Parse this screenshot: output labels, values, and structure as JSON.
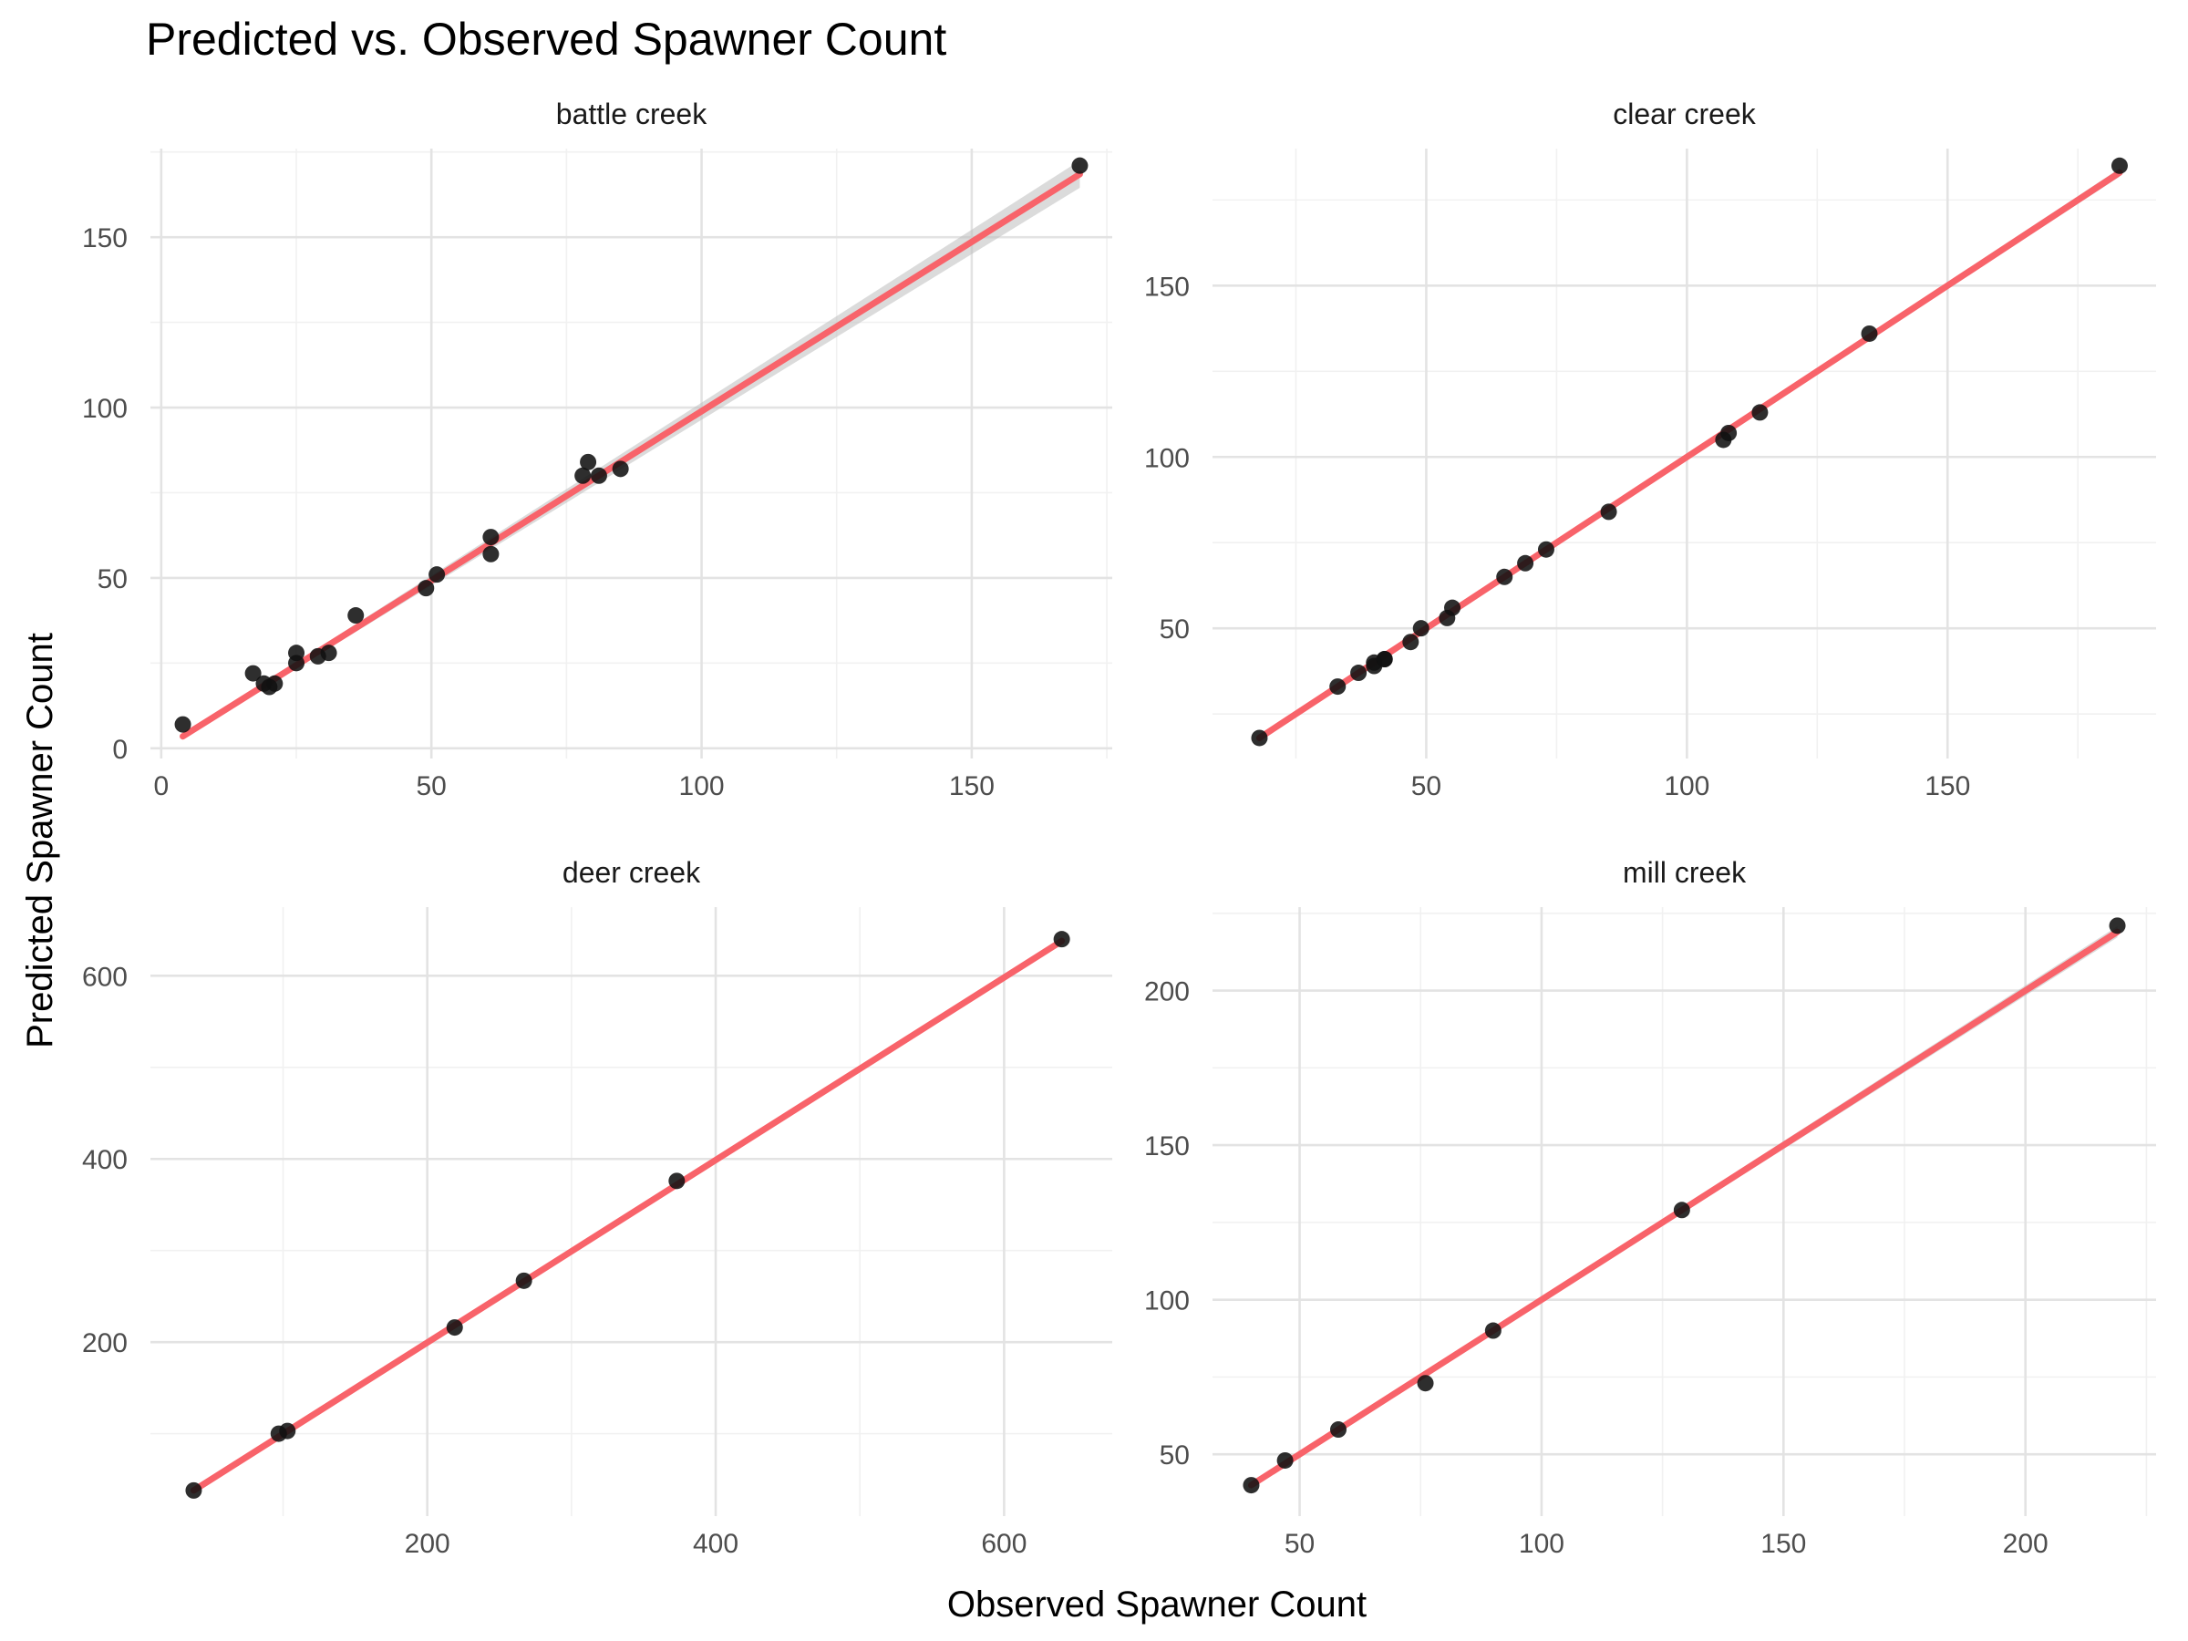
{
  "title": "Predicted vs. Observed Spawner Count",
  "xlabel": "Observed Spawner Count",
  "ylabel": "Predicted Spawner Count",
  "colors": {
    "fit_line": "#f8636a",
    "ribbon": "#bdbdbd",
    "points": "#111111",
    "grid": "#e3e3e3"
  },
  "chart_data": [
    {
      "type": "scatter",
      "panel": "battle creek",
      "xlim": [
        -2,
        176
      ],
      "ylim": [
        -3,
        176
      ],
      "xticks": [
        0,
        50,
        100,
        150
      ],
      "yticks": [
        0,
        50,
        100,
        150
      ],
      "x": [
        4,
        17,
        19,
        20,
        21,
        25,
        25,
        29,
        31,
        36,
        49,
        51,
        61,
        61,
        78,
        79,
        81,
        85,
        170
      ],
      "y": [
        7,
        22,
        19,
        18,
        19,
        28,
        25,
        27,
        28,
        39,
        47,
        51,
        62,
        57,
        80,
        84,
        80,
        82,
        171
      ],
      "fit": {
        "x": [
          4,
          170
        ],
        "y": [
          3.5,
          168.5
        ],
        "band": [
          0.5,
          4
        ]
      }
    },
    {
      "type": "scatter",
      "panel": "clear creek",
      "xlim": [
        9,
        190
      ],
      "ylim": [
        12,
        190
      ],
      "xticks": [
        50,
        100,
        150
      ],
      "yticks": [
        50,
        100,
        150
      ],
      "x": [
        18,
        33,
        37,
        40,
        40,
        42,
        42,
        47,
        49,
        54,
        55,
        65,
        69,
        73,
        85,
        107,
        108,
        114,
        135,
        183
      ],
      "y": [
        18,
        33,
        37,
        39,
        40,
        41,
        41,
        46,
        50,
        53,
        56,
        65,
        69,
        73,
        84,
        105,
        107,
        113,
        136,
        185
      ],
      "fit": {
        "x": [
          18,
          183
        ],
        "y": [
          18,
          183
        ],
        "band": [
          0.6,
          1.2
        ]
      }
    },
    {
      "type": "scatter",
      "panel": "deer creek",
      "xlim": [
        8,
        675
      ],
      "ylim": [
        10,
        675
      ],
      "xticks": [
        200,
        400,
        600
      ],
      "yticks": [
        200,
        400,
        600
      ],
      "x": [
        38,
        97,
        103,
        219,
        267,
        373,
        640
      ],
      "y": [
        38,
        100,
        103,
        216,
        267,
        376,
        640
      ],
      "fit": {
        "x": [
          38,
          640
        ],
        "y": [
          38,
          638
        ],
        "band": [
          2,
          4
        ]
      }
    },
    {
      "type": "scatter",
      "panel": "mill creek",
      "xlim": [
        32,
        227
      ],
      "ylim": [
        30,
        227
      ],
      "xticks": [
        50,
        100,
        150,
        200
      ],
      "yticks": [
        50,
        100,
        150,
        200
      ],
      "x": [
        40,
        47,
        58,
        76,
        90,
        129,
        219
      ],
      "y": [
        40,
        48,
        58,
        73,
        90,
        129,
        221
      ],
      "fit": {
        "x": [
          40,
          219
        ],
        "y": [
          40,
          219
        ],
        "band": [
          0.5,
          1.8
        ]
      }
    }
  ]
}
